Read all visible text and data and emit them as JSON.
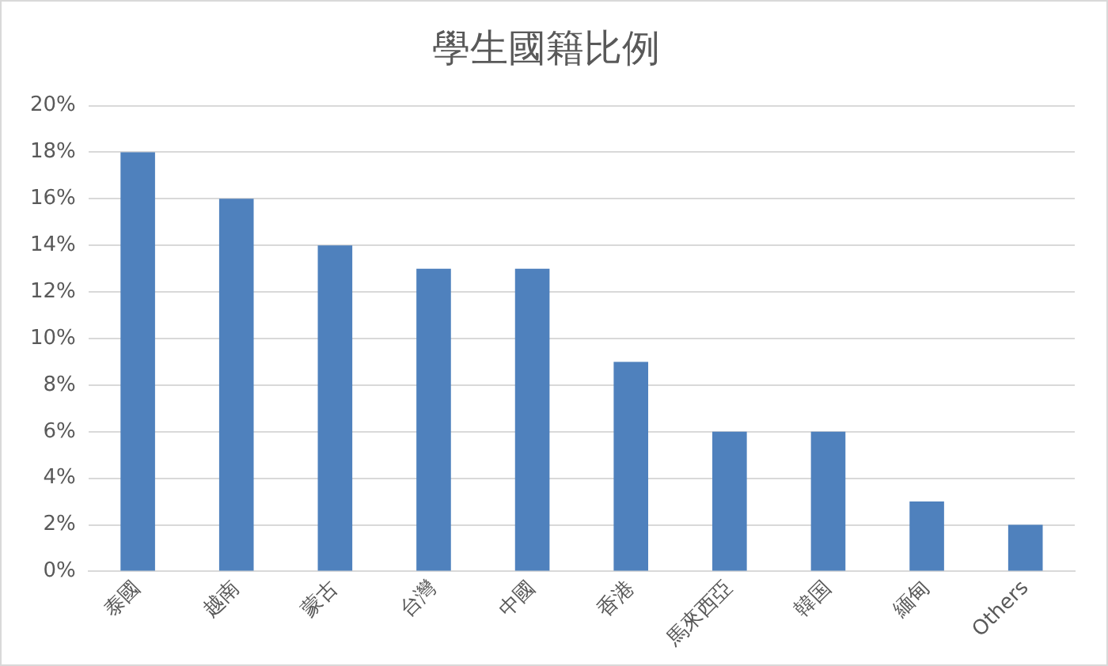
{
  "chart_data": {
    "type": "bar",
    "title": "學生國籍比例",
    "categories": [
      "泰國",
      "越南",
      "蒙古",
      "台灣",
      "中國",
      "香港",
      "馬來西亞",
      "韓国",
      "緬甸",
      "Others"
    ],
    "values": [
      18,
      16,
      14,
      13,
      13,
      9,
      6,
      6,
      3,
      2
    ],
    "color": "#4f81bd",
    "ylim": [
      0,
      20
    ],
    "yticks": [
      {
        "value": 0,
        "label": "0%"
      },
      {
        "value": 2,
        "label": "2%"
      },
      {
        "value": 4,
        "label": "4%"
      },
      {
        "value": 6,
        "label": "6%"
      },
      {
        "value": 8,
        "label": "8%"
      },
      {
        "value": 10,
        "label": "10%"
      },
      {
        "value": 12,
        "label": "12%"
      },
      {
        "value": 14,
        "label": "14%"
      },
      {
        "value": 16,
        "label": "16%"
      },
      {
        "value": 18,
        "label": "18%"
      },
      {
        "value": 20,
        "label": "20%"
      }
    ],
    "grid": "y"
  }
}
